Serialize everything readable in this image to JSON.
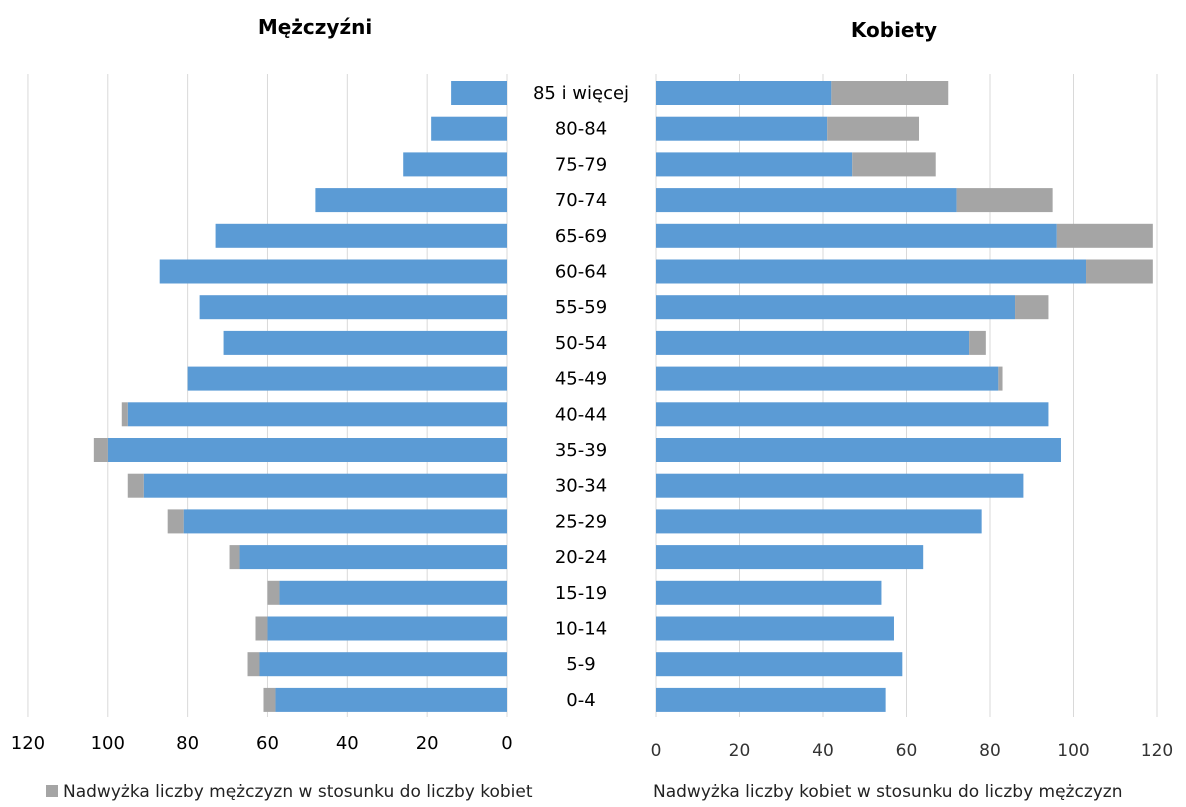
{
  "chart_data": [
    {
      "type": "bar",
      "orientation": "horizontal-reversed",
      "title": "Mężczyźni",
      "categories": [
        "85 i więcej",
        "80-84",
        "75-79",
        "70-74",
        "65-69",
        "60-64",
        "55-59",
        "50-54",
        "45-49",
        "40-44",
        "35-39",
        "30-34",
        "25-29",
        "20-24",
        "15-19",
        "10-14",
        "5-9",
        "0-4"
      ],
      "series": [
        {
          "role": "base",
          "color": "#5b9bd5",
          "values": [
            14,
            19,
            26,
            48,
            73,
            87,
            77,
            71,
            80,
            95,
            100,
            91,
            81,
            67,
            57,
            60,
            62,
            58
          ]
        },
        {
          "name": "Nadwyżka liczby mężczyzn w stosunku do liczby kobiet",
          "color": "#a5a5a5",
          "values": [
            0,
            0,
            0,
            0,
            0,
            0,
            0,
            0,
            0,
            1.5,
            3.5,
            4,
            4,
            2.5,
            3,
            3,
            3,
            3
          ]
        }
      ],
      "xlim": [
        0,
        120
      ],
      "ticks": [
        "120",
        "100",
        "80",
        "60",
        "40",
        "20",
        "0"
      ],
      "grid": true,
      "legend": "bottom"
    },
    {
      "type": "bar",
      "orientation": "horizontal",
      "title": "Kobiety",
      "categories": [
        "85 i więcej",
        "80-84",
        "75-79",
        "70-74",
        "65-69",
        "60-64",
        "55-59",
        "50-54",
        "45-49",
        "40-44",
        "35-39",
        "30-34",
        "25-29",
        "20-24",
        "15-19",
        "10-14",
        "5-9",
        "0-4"
      ],
      "series": [
        {
          "role": "base",
          "color": "#5b9bd5",
          "values": [
            42,
            41,
            47,
            72,
            96,
            103,
            86,
            75,
            82,
            94,
            97,
            88,
            78,
            64,
            54,
            57,
            59,
            55
          ]
        },
        {
          "name": "Nadwyżka liczby kobiet w stosunku do liczby mężczyzn",
          "color": "#a5a5a5",
          "values": [
            28,
            22,
            20,
            23,
            23,
            16,
            8,
            4,
            1,
            0,
            0,
            0,
            0,
            0,
            0,
            0,
            0,
            0
          ]
        }
      ],
      "xlim": [
        0,
        120
      ],
      "ticks": [
        "0",
        "20",
        "40",
        "60",
        "80",
        "100",
        "120"
      ],
      "grid": true,
      "legend": "bottom"
    }
  ]
}
